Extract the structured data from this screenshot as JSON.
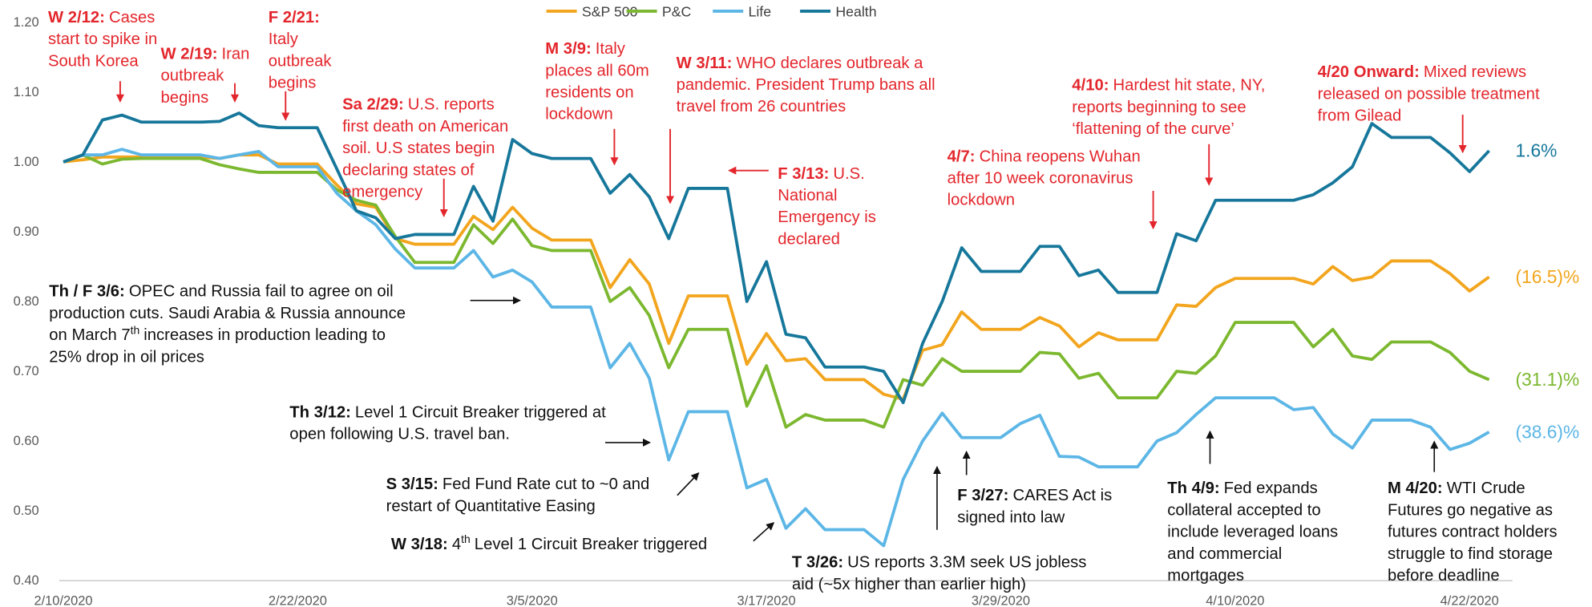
{
  "chart_data": {
    "type": "line",
    "categories": [
      "2/10/2020",
      null,
      null,
      null,
      null,
      null,
      null,
      null,
      null,
      null,
      null,
      null,
      "2/22/2020",
      null,
      null,
      null,
      null,
      null,
      null,
      null,
      null,
      null,
      null,
      null,
      "3/5/2020",
      null,
      null,
      null,
      null,
      null,
      null,
      null,
      null,
      null,
      null,
      null,
      "3/17/2020",
      null,
      null,
      null,
      null,
      null,
      null,
      null,
      null,
      null,
      null,
      null,
      "3/29/2020",
      null,
      null,
      null,
      null,
      null,
      null,
      null,
      null,
      null,
      null,
      null,
      "4/10/2020",
      null,
      null,
      null,
      null,
      null,
      null,
      null,
      null,
      null,
      null,
      null,
      "4/22/2020",
      null
    ],
    "ylim": [
      0.4,
      1.2
    ],
    "yticks": [
      {
        "value": 0.4,
        "label": "0.40"
      },
      {
        "value": 0.5,
        "label": "0.50"
      },
      {
        "value": 0.6,
        "label": "0.60"
      },
      {
        "value": 0.7,
        "label": "0.70"
      },
      {
        "value": 0.8,
        "label": "0.80"
      },
      {
        "value": 0.9,
        "label": "0.90"
      },
      {
        "value": 1.0,
        "label": "1.00"
      },
      {
        "value": 1.1,
        "label": "1.10"
      },
      {
        "value": 1.2,
        "label": "1.20"
      }
    ],
    "grid": false,
    "legend": "top",
    "series": [
      {
        "name": "S&P 500",
        "color": "#f2a51d",
        "end_label": "(16.5)%",
        "values": [
          1.0,
          1.003,
          1.007,
          1.007,
          1.007,
          1.007,
          1.007,
          1.007,
          1.005,
          1.01,
          1.01,
          0.997,
          0.997,
          0.997,
          0.967,
          0.94,
          0.935,
          0.89,
          0.882,
          0.882,
          0.882,
          0.922,
          0.903,
          0.935,
          0.905,
          0.888,
          0.888,
          0.888,
          0.82,
          0.86,
          0.825,
          0.74,
          0.808,
          0.808,
          0.808,
          0.71,
          0.754,
          0.715,
          0.718,
          0.688,
          0.688,
          0.688,
          0.667,
          0.66,
          0.73,
          0.738,
          0.785,
          0.76,
          0.76,
          0.76,
          0.777,
          0.765,
          0.735,
          0.755,
          0.745,
          0.745,
          0.745,
          0.795,
          0.793,
          0.82,
          0.833,
          0.833,
          0.833,
          0.833,
          0.825,
          0.85,
          0.83,
          0.835,
          0.858,
          0.858,
          0.858,
          0.84,
          0.815,
          0.835
        ]
      },
      {
        "name": "P&C",
        "color": "#7cb82f",
        "end_label": "(31.1)%",
        "values": [
          1.0,
          1.01,
          0.997,
          1.004,
          1.005,
          1.005,
          1.005,
          1.005,
          0.996,
          0.99,
          0.985,
          0.985,
          0.985,
          0.985,
          0.96,
          0.945,
          0.938,
          0.893,
          0.856,
          0.856,
          0.856,
          0.91,
          0.883,
          0.918,
          0.88,
          0.873,
          0.873,
          0.873,
          0.8,
          0.82,
          0.78,
          0.705,
          0.76,
          0.76,
          0.76,
          0.65,
          0.708,
          0.62,
          0.638,
          0.63,
          0.63,
          0.63,
          0.62,
          0.688,
          0.68,
          0.718,
          0.7,
          0.7,
          0.7,
          0.7,
          0.727,
          0.725,
          0.69,
          0.697,
          0.662,
          0.662,
          0.662,
          0.7,
          0.697,
          0.722,
          0.77,
          0.77,
          0.77,
          0.77,
          0.735,
          0.76,
          0.722,
          0.717,
          0.742,
          0.742,
          0.742,
          0.727,
          0.7,
          0.688
        ]
      },
      {
        "name": "Life",
        "color": "#5cb6e6",
        "end_label": "(38.6)%",
        "values": [
          1.0,
          1.01,
          1.01,
          1.018,
          1.01,
          1.01,
          1.01,
          1.01,
          1.005,
          1.01,
          1.015,
          0.993,
          0.993,
          0.993,
          0.955,
          0.93,
          0.91,
          0.875,
          0.848,
          0.848,
          0.848,
          0.873,
          0.835,
          0.845,
          0.828,
          0.792,
          0.792,
          0.792,
          0.705,
          0.74,
          0.69,
          0.573,
          0.642,
          0.642,
          0.642,
          0.533,
          0.545,
          0.475,
          0.503,
          0.473,
          0.473,
          0.473,
          0.45,
          0.545,
          0.6,
          0.64,
          0.605,
          0.605,
          0.605,
          0.625,
          0.637,
          0.578,
          0.577,
          0.563,
          0.563,
          0.563,
          0.6,
          0.612,
          0.638,
          0.662,
          0.662,
          0.662,
          0.662,
          0.645,
          0.648,
          0.61,
          0.59,
          0.63,
          0.63,
          0.63,
          0.62,
          0.588,
          0.597,
          0.613
        ]
      },
      {
        "name": "Health",
        "color": "#16779b",
        "end_label": "1.6%",
        "values": [
          1.0,
          1.01,
          1.06,
          1.067,
          1.057,
          1.057,
          1.057,
          1.057,
          1.058,
          1.07,
          1.052,
          1.049,
          1.049,
          1.049,
          0.99,
          0.93,
          0.92,
          0.89,
          0.896,
          0.896,
          0.896,
          0.965,
          0.915,
          1.032,
          1.012,
          1.005,
          1.005,
          1.005,
          0.955,
          0.982,
          0.95,
          0.89,
          0.962,
          0.962,
          0.962,
          0.8,
          0.857,
          0.753,
          0.748,
          0.706,
          0.706,
          0.706,
          0.7,
          0.655,
          0.74,
          0.8,
          0.877,
          0.843,
          0.843,
          0.843,
          0.879,
          0.879,
          0.837,
          0.845,
          0.813,
          0.813,
          0.813,
          0.897,
          0.887,
          0.945,
          0.945,
          0.945,
          0.945,
          0.945,
          0.953,
          0.97,
          0.993,
          1.055,
          1.035,
          1.035,
          1.035,
          1.013,
          0.986,
          1.016
        ]
      }
    ],
    "annotations": [
      {
        "color": "#e3262c",
        "inline": true,
        "bold": "W 2/12:",
        "lines": [
          "Cases",
          "start to spike in",
          "South Korea"
        ]
      },
      {
        "color": "#e3262c",
        "inline": true,
        "bold": "W 2/19:",
        "lines": [
          "Iran",
          "outbreak",
          "begins"
        ]
      },
      {
        "color": "#e3262c",
        "inline": false,
        "bold": "F 2/21:",
        "lines": [
          "Italy",
          "outbreak",
          "begins"
        ]
      },
      {
        "color": "#e3262c",
        "inline": true,
        "bold": "Sa 2/29:",
        "lines": [
          "U.S. reports",
          "first death on American",
          "soil. U.S states begin",
          "declaring states of",
          "emergency"
        ]
      },
      {
        "color": "#e3262c",
        "inline": true,
        "bold": "M 3/9:",
        "lines": [
          "Italy",
          "places all 60m",
          "residents on",
          "lockdown"
        ]
      },
      {
        "color": "#e3262c",
        "inline": true,
        "bold": "W 3/11:",
        "lines": [
          "WHO declares outbreak a",
          "pandemic. President Trump bans all",
          "travel from 26 countries"
        ]
      },
      {
        "color": "#e3262c",
        "inline": true,
        "bold": "F 3/13:",
        "lines": [
          "U.S.",
          "National",
          "Emergency is",
          "declared"
        ]
      },
      {
        "color": "#e3262c",
        "inline": true,
        "bold": "4/7:",
        "lines": [
          "China reopens Wuhan",
          "after 10 week coronavirus",
          "lockdown"
        ]
      },
      {
        "color": "#e3262c",
        "inline": true,
        "bold": "4/10:",
        "lines": [
          "Hardest hit state, NY,",
          "reports beginning to see",
          "‘flattening of the curve’"
        ]
      },
      {
        "color": "#e3262c",
        "inline": true,
        "bold": "4/20 Onward:",
        "lines": [
          "Mixed reviews",
          "released on possible treatment",
          "from Gilead"
        ]
      },
      {
        "color": "#111111",
        "inline": true,
        "bold": "Th / F 3/6:",
        "lines": [
          "OPEC and Russia fail to agree on oil",
          "production cuts. Saudi Arabia & Russia announce",
          [
            "on March 7",
            "th",
            "increases in production leading to"
          ],
          "25% drop in oil prices"
        ]
      },
      {
        "color": "#111111",
        "inline": true,
        "bold": "Th 3/12:",
        "lines": [
          "Level 1 Circuit Breaker triggered at",
          "open following U.S. travel ban."
        ]
      },
      {
        "color": "#111111",
        "inline": true,
        "bold": "S 3/15:",
        "lines": [
          "Fed Fund Rate cut to ~0 and",
          "restart of Quantitative Easing"
        ]
      },
      {
        "color": "#111111",
        "inline": true,
        "bold": "W 3/18:",
        "lines": [
          [
            "4",
            "th",
            "Level 1 Circuit Breaker triggered"
          ]
        ]
      },
      {
        "color": "#111111",
        "inline": true,
        "bold": "T 3/26:",
        "lines": [
          "US reports 3.3M  seek US jobless",
          "aid (~5x higher than earlier high)"
        ]
      },
      {
        "color": "#111111",
        "inline": true,
        "bold": "F 3/27:",
        "lines": [
          "CARES Act is",
          "signed into law"
        ]
      },
      {
        "color": "#111111",
        "inline": true,
        "bold": "Th 4/9:",
        "lines": [
          "Fed expands",
          "collateral accepted to",
          "include leveraged loans",
          "and commercial",
          "mortgages"
        ]
      },
      {
        "color": "#111111",
        "inline": true,
        "bold": "M 4/20:",
        "lines": [
          "WTI Crude",
          "Futures go negative as",
          "futures contract holders",
          "struggle to find storage",
          "before deadline"
        ]
      }
    ]
  }
}
